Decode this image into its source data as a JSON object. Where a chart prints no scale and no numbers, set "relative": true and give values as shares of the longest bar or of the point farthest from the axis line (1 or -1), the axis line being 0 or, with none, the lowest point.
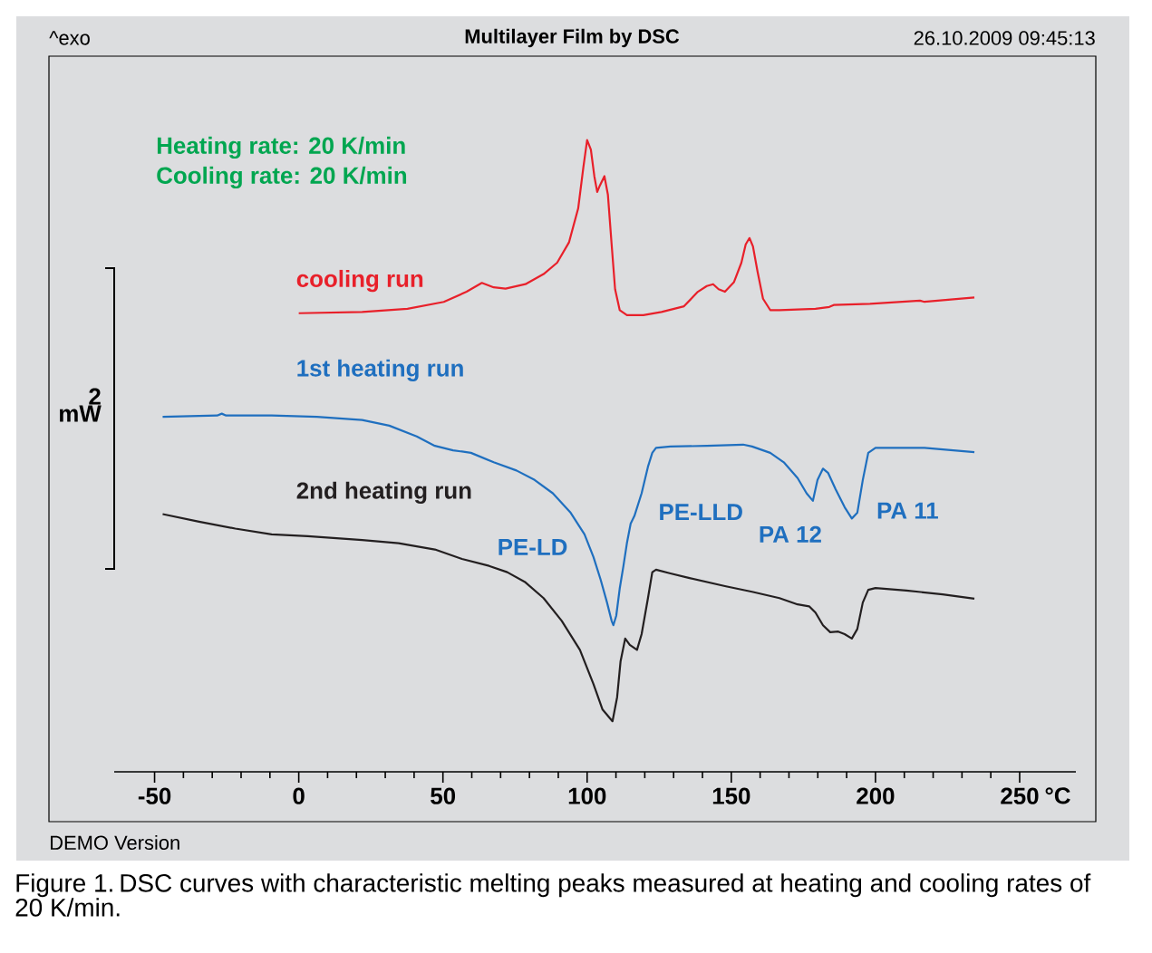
{
  "chart_data": {
    "type": "line",
    "title": "Multilayer Film by DSC",
    "relative": true,
    "xlim": [
      -64,
      269.5
    ],
    "xticks": [
      -50,
      0,
      50,
      100,
      150,
      200,
      250
    ],
    "xlabel": "°C",
    "annotations": [
      "^exo",
      "26.10.2009 09:45:13",
      "Heating rate: 20 K/min",
      "Cooling rate: 20 K/min",
      "2 mW",
      "DEMO Version",
      "Figure 1. DSC curves with characteristic melting peaks measured at heating and cooling rates of 20 K/min.",
      "PE-LD",
      "PE-LLD",
      "PA 12",
      "PA 11"
    ],
    "series": [
      {
        "name": "cooling run",
        "color": "#e8202a",
        "x": [
          0.0,
          22.0,
          37.7,
          50.3,
          58.2,
          63.5,
          67.6,
          71.7,
          78.6,
          84.9,
          89.6,
          93.7,
          96.9,
          98.7,
          100.0,
          101.3,
          102.5,
          103.5,
          104.4,
          106.0,
          107.2,
          108.5,
          109.7,
          111.3,
          113.8,
          119.5,
          125.8,
          133.6,
          138.4,
          141.5,
          143.7,
          145.6,
          147.8,
          150.9,
          153.5,
          155.0,
          156.3,
          157.5,
          159.1,
          161.0,
          163.5,
          166.7,
          179.2,
          184.0,
          185.5,
          198.1,
          215.4,
          217.0,
          234.3
        ],
        "values": [
          0.726,
          0.728,
          0.733,
          0.744,
          0.76,
          0.774,
          0.767,
          0.765,
          0.772,
          0.788,
          0.806,
          0.838,
          0.892,
          0.957,
          1.0,
          0.985,
          0.943,
          0.918,
          0.928,
          0.943,
          0.914,
          0.835,
          0.764,
          0.731,
          0.723,
          0.723,
          0.728,
          0.737,
          0.76,
          0.769,
          0.772,
          0.764,
          0.76,
          0.775,
          0.806,
          0.835,
          0.845,
          0.832,
          0.792,
          0.749,
          0.731,
          0.731,
          0.733,
          0.736,
          0.739,
          0.741,
          0.746,
          0.744,
          0.751
        ]
      },
      {
        "name": "1st heating run",
        "color": "#1f6fbf",
        "x": [
          -47.2,
          -28.3,
          -26.7,
          -25.2,
          -9.4,
          6.3,
          22.0,
          31.4,
          40.9,
          47.2,
          53.5,
          59.7,
          67.6,
          75.5,
          81.8,
          88.1,
          94.3,
          99.1,
          102.2,
          104.7,
          106.9,
          108.5,
          109.1,
          110.1,
          111.3,
          112.6,
          113.8,
          115.1,
          116.4,
          118.9,
          121.1,
          122.6,
          123.9,
          128.9,
          141.5,
          154.1,
          157.2,
          163.5,
          168.2,
          173.0,
          176.1,
          178.3,
          179.9,
          181.8,
          183.6,
          186.2,
          189.3,
          191.8,
          193.7,
          195.6,
          197.5,
          200.0,
          204.4,
          217.0,
          234.3
        ],
        "values": [
          0.562,
          0.564,
          0.567,
          0.564,
          0.564,
          0.562,
          0.557,
          0.548,
          0.531,
          0.516,
          0.509,
          0.505,
          0.49,
          0.477,
          0.462,
          0.441,
          0.41,
          0.376,
          0.34,
          0.304,
          0.268,
          0.239,
          0.232,
          0.247,
          0.29,
          0.326,
          0.362,
          0.393,
          0.405,
          0.441,
          0.483,
          0.505,
          0.513,
          0.515,
          0.516,
          0.518,
          0.515,
          0.505,
          0.49,
          0.465,
          0.441,
          0.429,
          0.462,
          0.48,
          0.473,
          0.447,
          0.419,
          0.401,
          0.41,
          0.462,
          0.505,
          0.513,
          0.513,
          0.513,
          0.506
        ]
      },
      {
        "name": "2nd heating run",
        "color": "#231f20",
        "x": [
          -47.2,
          -34.6,
          -22.0,
          -9.4,
          3.1,
          22.0,
          34.6,
          47.2,
          56.6,
          66.0,
          72.3,
          78.6,
          84.9,
          91.2,
          97.5,
          102.2,
          105.3,
          108.8,
          110.4,
          111.6,
          113.2,
          114.8,
          117.3,
          118.9,
          121.1,
          122.6,
          123.9,
          128.9,
          135.2,
          147.8,
          157.2,
          166.7,
          173.0,
          177.0,
          179.2,
          181.8,
          184.3,
          187.1,
          189.3,
          191.8,
          193.7,
          195.6,
          197.5,
          200.0,
          210.7,
          223.3,
          234.3
        ],
        "values": [
          0.408,
          0.396,
          0.385,
          0.376,
          0.373,
          0.367,
          0.362,
          0.352,
          0.337,
          0.326,
          0.316,
          0.3,
          0.275,
          0.239,
          0.193,
          0.139,
          0.099,
          0.08,
          0.118,
          0.175,
          0.211,
          0.201,
          0.193,
          0.218,
          0.275,
          0.316,
          0.32,
          0.314,
          0.307,
          0.294,
          0.285,
          0.275,
          0.265,
          0.262,
          0.252,
          0.232,
          0.221,
          0.222,
          0.218,
          0.211,
          0.226,
          0.268,
          0.288,
          0.291,
          0.287,
          0.281,
          0.274
        ]
      }
    ]
  }
}
